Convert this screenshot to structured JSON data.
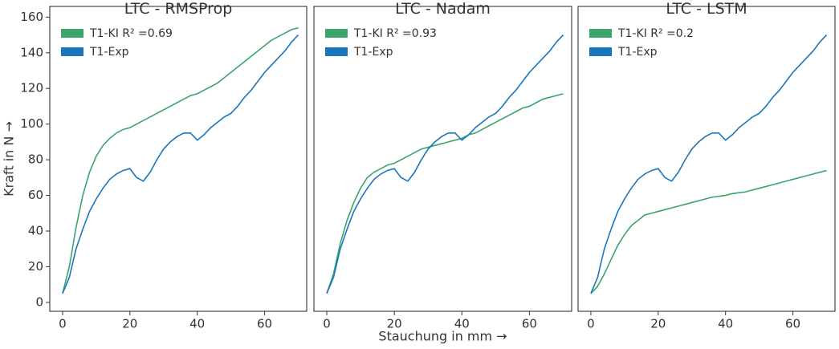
{
  "chart_data": [
    {
      "type": "line",
      "title": "LTC - RMSProp",
      "ylabel": "Kraft in N →",
      "x": [
        0,
        2,
        4,
        6,
        8,
        10,
        12,
        14,
        16,
        18,
        20,
        22,
        24,
        26,
        28,
        30,
        32,
        34,
        36,
        38,
        40,
        42,
        44,
        46,
        48,
        50,
        52,
        54,
        56,
        58,
        60,
        62,
        64,
        66,
        68,
        70
      ],
      "series": [
        {
          "name": "T1-KI R² =0.69",
          "color": "#3aa66a",
          "values": [
            5,
            20,
            42,
            60,
            73,
            82,
            88,
            92,
            95,
            97,
            98,
            100,
            102,
            104,
            106,
            108,
            110,
            112,
            114,
            116,
            117,
            119,
            121,
            123,
            126,
            129,
            132,
            135,
            138,
            141,
            144,
            147,
            149,
            151,
            153,
            154
          ]
        },
        {
          "name": "T1-Exp",
          "color": "#1a76bb",
          "values": [
            5,
            14,
            30,
            41,
            51,
            58,
            64,
            69,
            72,
            74,
            75,
            70,
            68,
            73,
            80,
            86,
            90,
            93,
            95,
            95,
            91,
            94,
            98,
            101,
            104,
            106,
            110,
            115,
            119,
            124,
            129,
            133,
            137,
            141,
            146,
            150
          ]
        }
      ],
      "xlim": [
        -3.8,
        72.5
      ],
      "ylim": [
        -5,
        166
      ],
      "xticks": [
        0,
        20,
        40,
        60
      ],
      "yticks": [
        0,
        20,
        40,
        60,
        80,
        100,
        120,
        140,
        160
      ]
    },
    {
      "type": "line",
      "title": "LTC - Nadam",
      "xlabel": "Stauchung in mm →",
      "x": [
        0,
        2,
        4,
        6,
        8,
        10,
        12,
        14,
        16,
        18,
        20,
        22,
        24,
        26,
        28,
        30,
        32,
        34,
        36,
        38,
        40,
        42,
        44,
        46,
        48,
        50,
        52,
        54,
        56,
        58,
        60,
        62,
        64,
        66,
        68,
        70
      ],
      "series": [
        {
          "name": "T1-KI R² =0.93",
          "color": "#3aa66a",
          "values": [
            5,
            16,
            33,
            46,
            56,
            64,
            70,
            73,
            75,
            77,
            78,
            80,
            82,
            84,
            86,
            87,
            88,
            89,
            90,
            91,
            92,
            94,
            95,
            97,
            99,
            101,
            103,
            105,
            107,
            109,
            110,
            112,
            114,
            115,
            116,
            117
          ]
        },
        {
          "name": "T1-Exp",
          "color": "#1a76bb",
          "values": [
            5,
            14,
            30,
            41,
            51,
            58,
            64,
            69,
            72,
            74,
            75,
            70,
            68,
            73,
            80,
            86,
            90,
            93,
            95,
            95,
            91,
            94,
            98,
            101,
            104,
            106,
            110,
            115,
            119,
            124,
            129,
            133,
            137,
            141,
            146,
            150
          ]
        }
      ],
      "xlim": [
        -3.8,
        72.5
      ],
      "ylim": [
        -5,
        166
      ],
      "xticks": [
        0,
        20,
        40,
        60
      ]
    },
    {
      "type": "line",
      "title": "LTC - LSTM",
      "x": [
        0,
        2,
        4,
        6,
        8,
        10,
        12,
        14,
        16,
        18,
        20,
        22,
        24,
        26,
        28,
        30,
        32,
        34,
        36,
        38,
        40,
        42,
        44,
        46,
        48,
        50,
        52,
        54,
        56,
        58,
        60,
        62,
        64,
        66,
        68,
        70
      ],
      "series": [
        {
          "name": "T1-KI R² =0.2",
          "color": "#3aa66a",
          "values": [
            5,
            9,
            16,
            24,
            32,
            38,
            43,
            46,
            49,
            50,
            51,
            52,
            53,
            54,
            55,
            56,
            57,
            58,
            59,
            59.5,
            60,
            61,
            61.5,
            62,
            63,
            64,
            65,
            66,
            67,
            68,
            69,
            70,
            71,
            72,
            73,
            74
          ]
        },
        {
          "name": "T1-Exp",
          "color": "#1a76bb",
          "values": [
            5,
            14,
            30,
            41,
            51,
            58,
            64,
            69,
            72,
            74,
            75,
            70,
            68,
            73,
            80,
            86,
            90,
            93,
            95,
            95,
            91,
            94,
            98,
            101,
            104,
            106,
            110,
            115,
            119,
            124,
            129,
            133,
            137,
            141,
            146,
            150
          ]
        }
      ],
      "xlim": [
        -3.8,
        72.5
      ],
      "ylim": [
        -5,
        166
      ],
      "xticks": [
        0,
        20,
        40,
        60
      ]
    }
  ]
}
